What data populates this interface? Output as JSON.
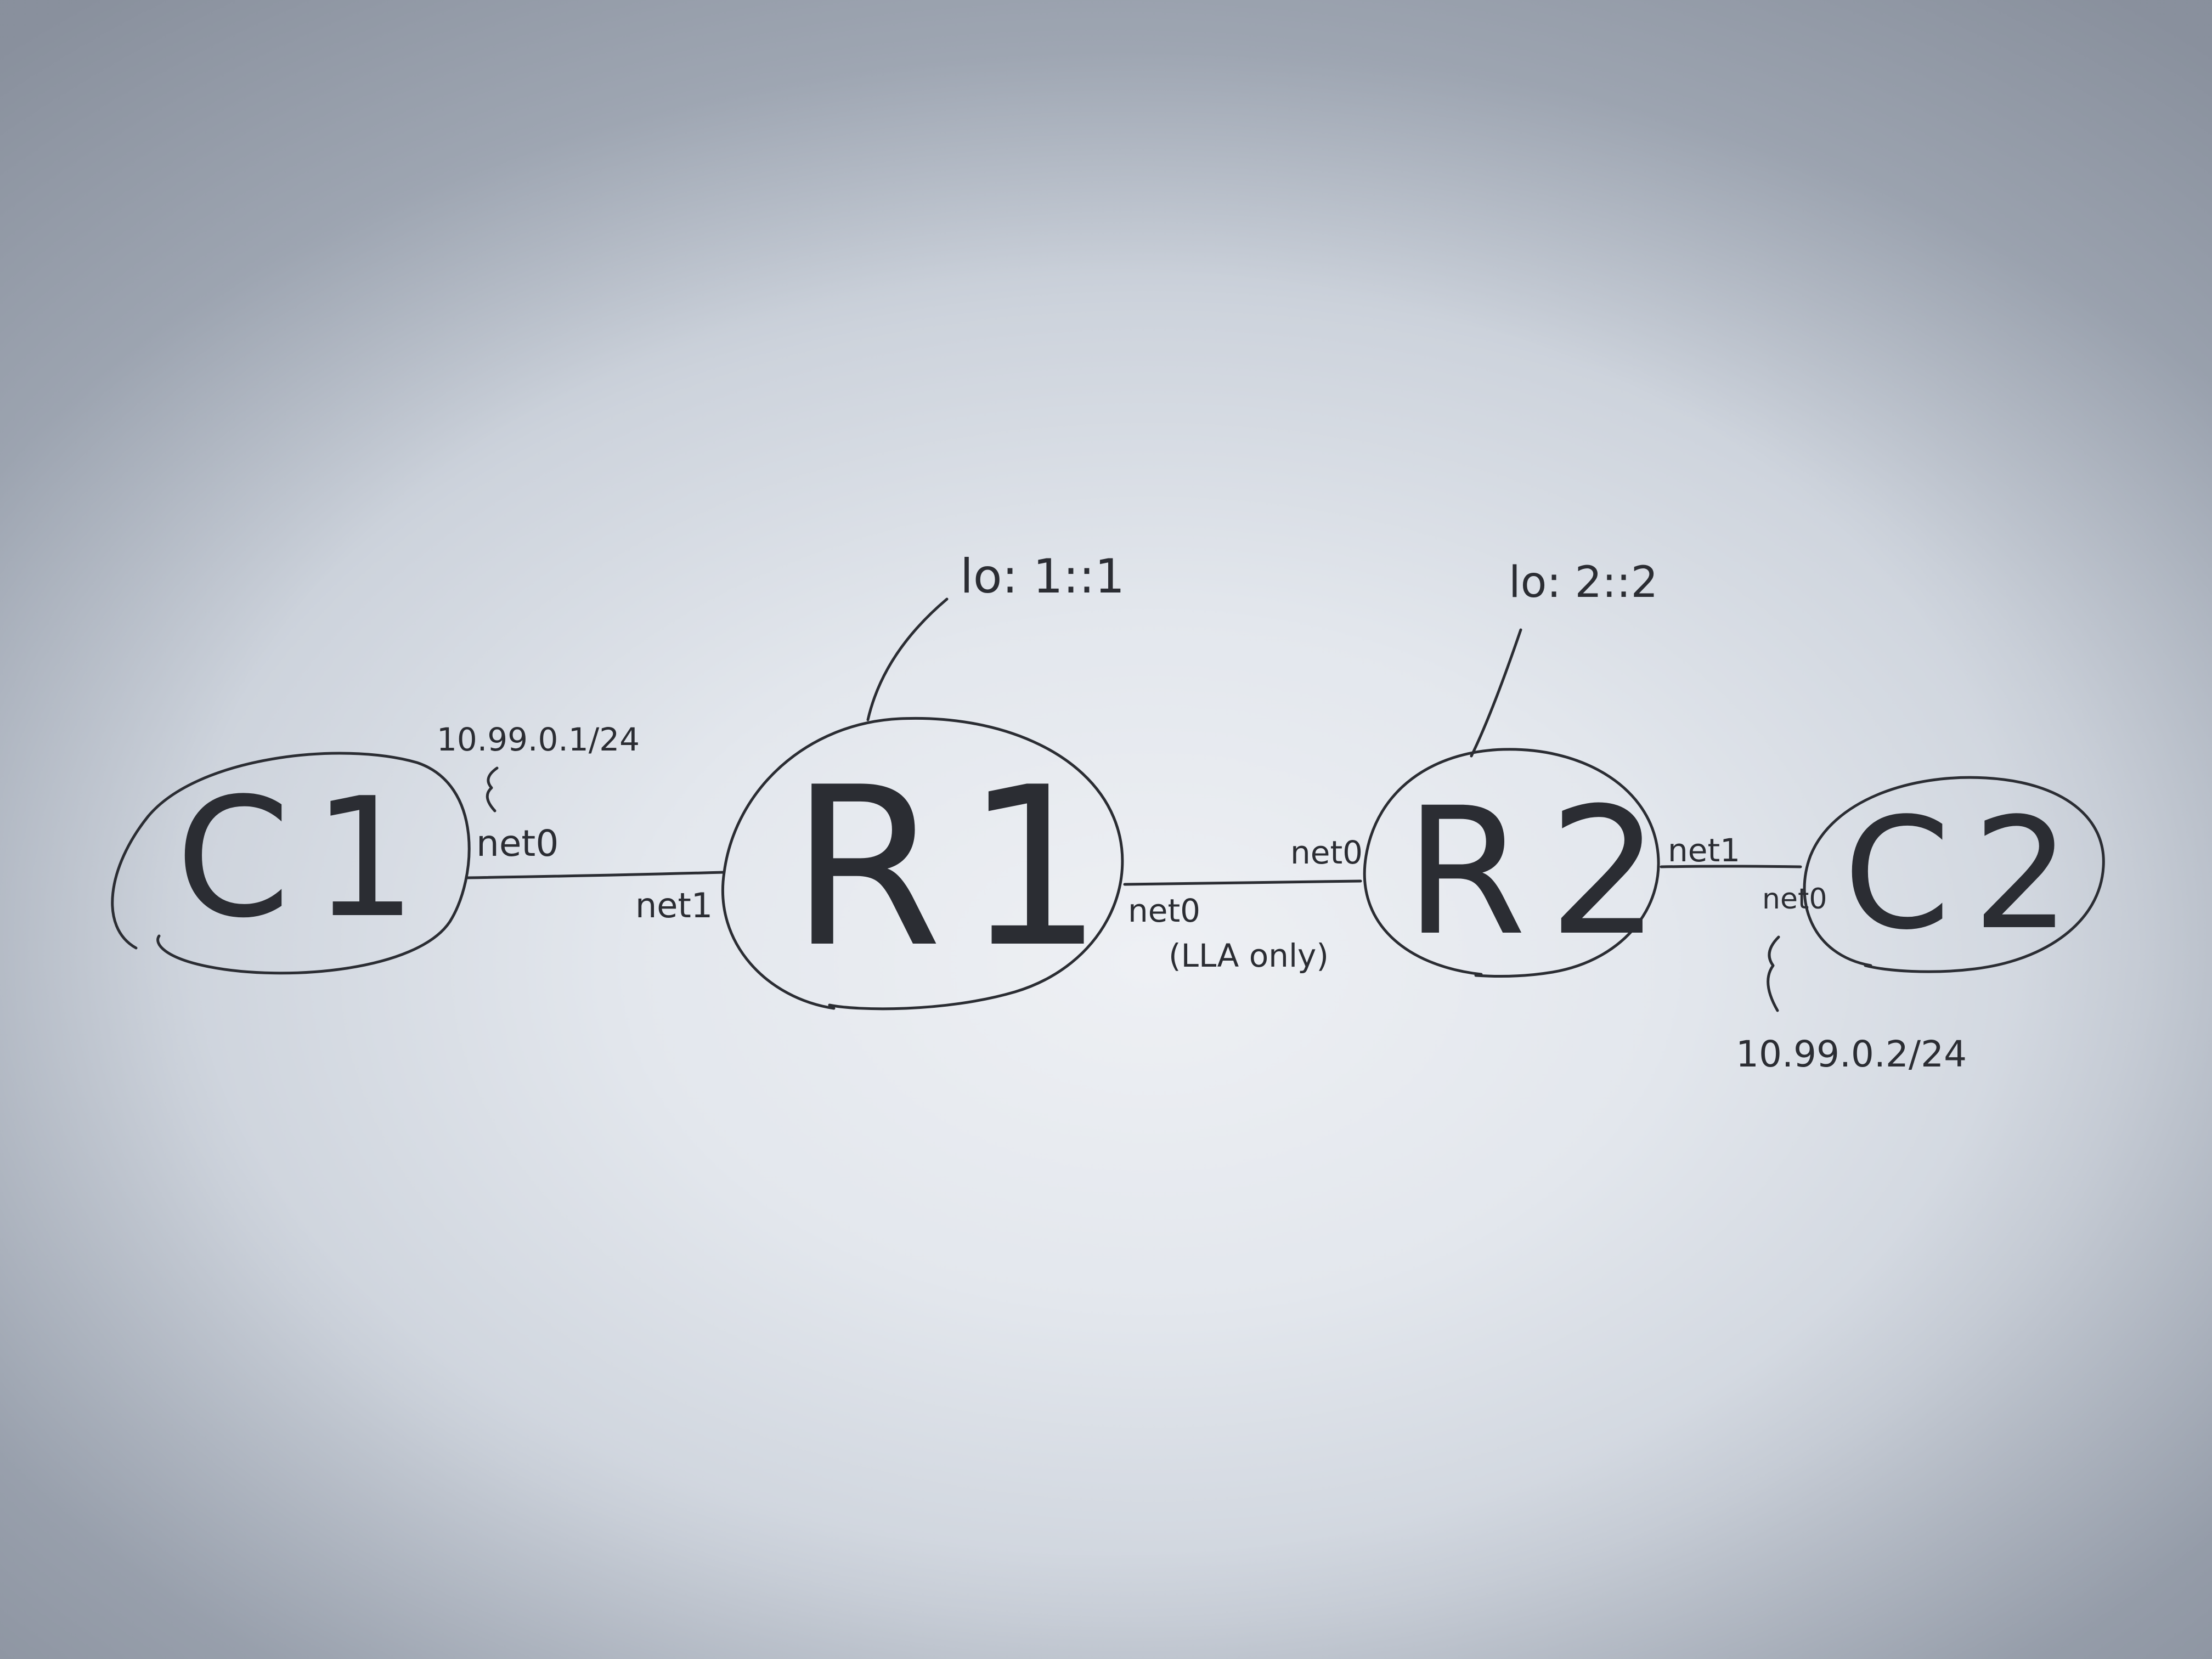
{
  "nodes": {
    "c1": {
      "label": "C1"
    },
    "r1": {
      "label": "R1",
      "loopback": "lo: 1::1"
    },
    "r2": {
      "label": "R2",
      "loopback": "lo: 2::2"
    },
    "c2": {
      "label": "C2"
    }
  },
  "interfaces": {
    "c1_net0": "net0",
    "r1_net1": "net1",
    "r1_net0": "net0",
    "r2_net0": "net0",
    "r2_net1": "net1",
    "c2_net0": "net0"
  },
  "addresses": {
    "c1_ip": "10.99.0.1/24",
    "c2_ip": "10.99.0.2/24"
  },
  "notes": {
    "r1_r2_link": "(LLA only)"
  },
  "colors": {
    "ink": "#2b2d33",
    "paper": "#e6e9ef"
  }
}
